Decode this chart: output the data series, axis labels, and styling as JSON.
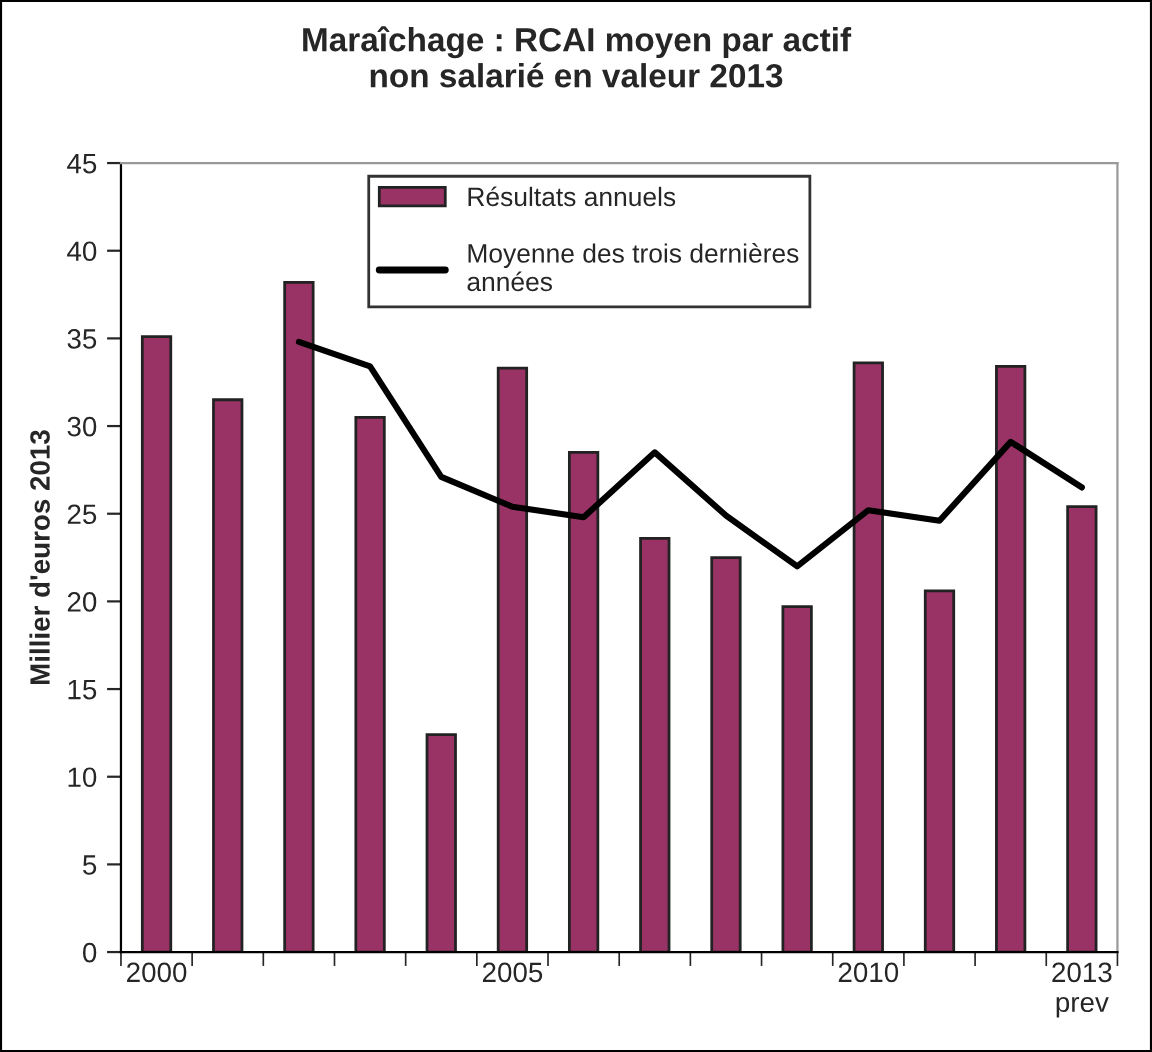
{
  "chart_data": {
    "type": "bar",
    "title": "Maraîchage : RCAI moyen par actif\nnon salarié en valeur 2013",
    "ylabel": "Millier d'euros 2013",
    "categories": [
      "2000",
      null,
      null,
      null,
      null,
      "2005",
      null,
      null,
      null,
      null,
      "2010",
      null,
      null,
      "2013\nprev"
    ],
    "series": [
      {
        "name": "Résultats annuels",
        "color": "#993366",
        "values": [
          35.1,
          31.5,
          38.2,
          30.5,
          12.4,
          33.3,
          28.5,
          23.6,
          22.5,
          19.7,
          33.6,
          20.6,
          33.4,
          25.4
        ]
      },
      {
        "name": "Moyenne des trois dernières\nannées",
        "type": "line",
        "color": "#000000",
        "values": [
          null,
          null,
          34.8,
          33.4,
          27.1,
          25.4,
          24.8,
          28.5,
          24.9,
          22.0,
          25.2,
          24.6,
          29.1,
          26.5
        ]
      }
    ],
    "ylim": [
      0,
      45
    ],
    "yticks": [
      0,
      5,
      10,
      15,
      20,
      25,
      30,
      35,
      40,
      45
    ],
    "grid": false,
    "legend": "top",
    "marker": "none",
    "line_style": "solid"
  }
}
